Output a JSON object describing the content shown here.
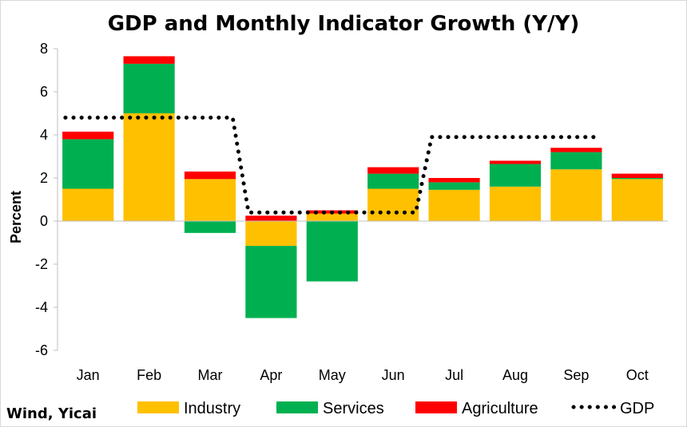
{
  "chart_data": {
    "type": "bar",
    "title": "GDP and Monthly Indicator Growth (Y/Y)",
    "xlabel": "",
    "ylabel": "Percent",
    "ylim": [
      -6,
      8
    ],
    "yticks": [
      -6,
      -4,
      -2,
      0,
      2,
      4,
      6,
      8
    ],
    "yticks_labels": [
      "-6",
      "-4",
      "-2",
      "0",
      "2",
      "4",
      "6",
      "8"
    ],
    "grid": false,
    "stacked": true,
    "legend_position": "bottom",
    "source": "Wind, Yicai",
    "categories": [
      "Jan",
      "Feb",
      "Mar",
      "Apr",
      "May",
      "Jun",
      "Jul",
      "Aug",
      "Sep",
      "Oct"
    ],
    "series": [
      {
        "name": "Industry",
        "color": "#FFC000",
        "values": [
          1.5,
          5.0,
          1.95,
          -1.15,
          0.35,
          1.5,
          1.45,
          1.6,
          2.4,
          1.95
        ]
      },
      {
        "name": "Services",
        "color": "#00B050",
        "values": [
          2.3,
          2.3,
          -0.55,
          -3.35,
          -2.8,
          0.7,
          0.35,
          1.05,
          0.8,
          0.05
        ]
      },
      {
        "name": "Agriculture",
        "color": "#FF0000",
        "values": [
          0.35,
          0.35,
          0.35,
          0.25,
          0.15,
          0.3,
          0.2,
          0.15,
          0.2,
          0.2
        ]
      }
    ],
    "line_series": {
      "name": "GDP",
      "color": "#000000",
      "style": "dotted",
      "values": [
        4.8,
        4.8,
        4.8,
        0.4,
        0.4,
        0.4,
        3.9,
        3.9,
        3.9,
        null
      ]
    }
  }
}
